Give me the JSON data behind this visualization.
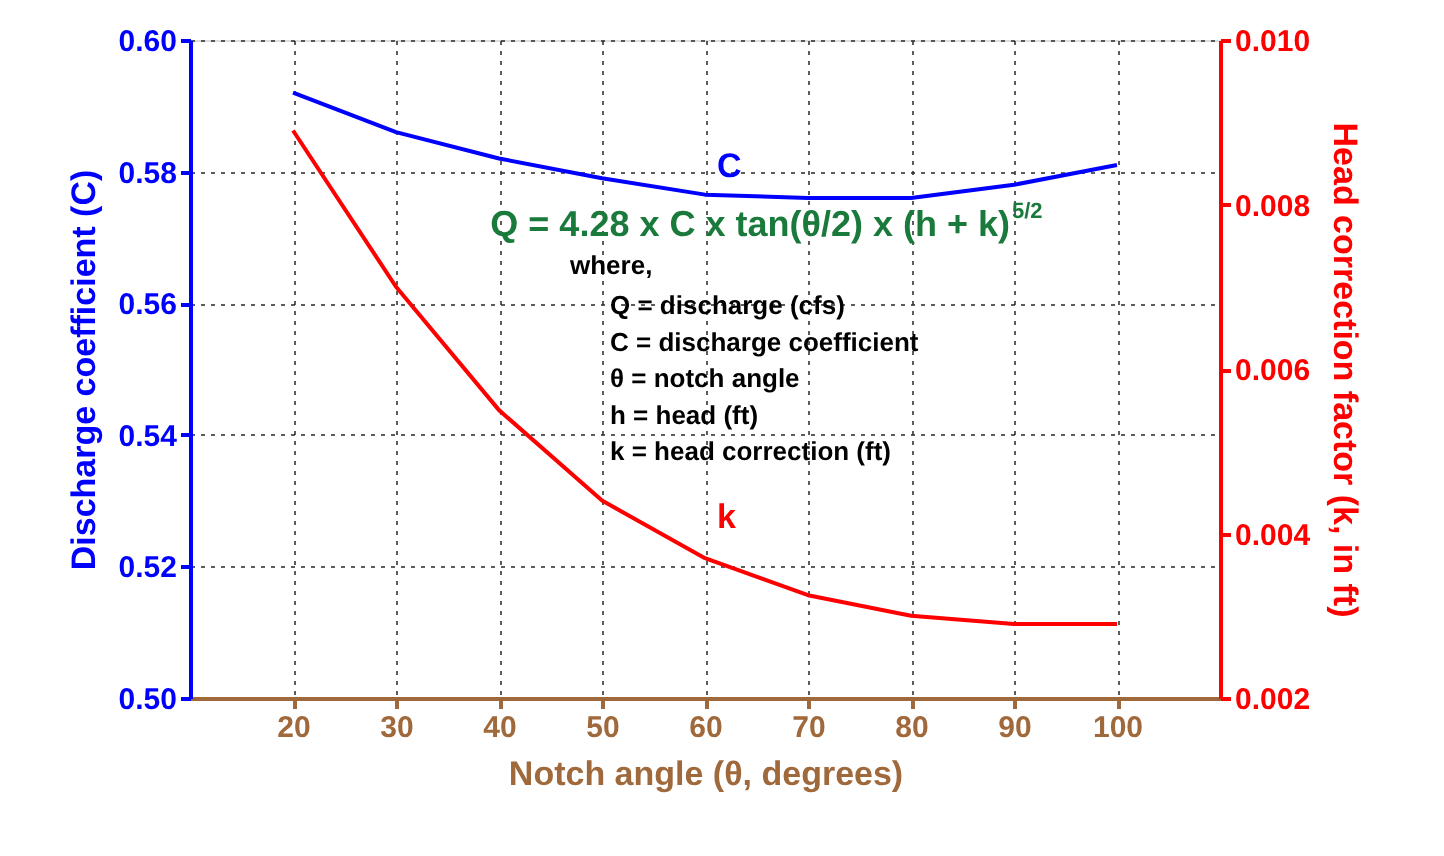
{
  "chart_data": {
    "type": "line",
    "xlabel": "Notch angle (θ, degrees)",
    "ylabel": "Discharge coefficient (C)",
    "y2label": "Head correction factor (k, in ft)",
    "x": [
      20,
      30,
      40,
      50,
      60,
      70,
      80,
      90,
      100
    ],
    "series": [
      {
        "name": "C",
        "color": "#0000ff",
        "values": [
          0.592,
          0.586,
          0.582,
          0.579,
          0.5765,
          0.576,
          0.576,
          0.578,
          0.581
        ]
      },
      {
        "name": "k",
        "color": "#ff0000",
        "axis": "y2",
        "values": [
          0.0089,
          0.007,
          0.0055,
          0.0044,
          0.0037,
          0.00325,
          0.003,
          0.0029,
          0.0029
        ]
      }
    ],
    "xlim": [
      10,
      110
    ],
    "xticks": [
      20,
      30,
      40,
      50,
      60,
      70,
      80,
      90,
      100
    ],
    "ylim": [
      0.5,
      0.6
    ],
    "yticks": [
      {
        "value": 0.5,
        "label": "0.50"
      },
      {
        "value": 0.52,
        "label": "0.52"
      },
      {
        "value": 0.54,
        "label": "0.54"
      },
      {
        "value": 0.56,
        "label": "0.56"
      },
      {
        "value": 0.58,
        "label": "0.58"
      },
      {
        "value": 0.6,
        "label": "0.60"
      }
    ],
    "y2lim": [
      0.002,
      0.01
    ],
    "y2ticks": [
      {
        "value": 0.002,
        "label": "0.002"
      },
      {
        "value": 0.004,
        "label": "0.004"
      },
      {
        "value": 0.006,
        "label": "0.006"
      },
      {
        "value": 0.008,
        "label": "0.008"
      },
      {
        "value": 0.01,
        "label": "0.010"
      }
    ],
    "annotations": [
      "Q = 4.28 x C x tan(θ/2) x (h + k)$^{5/2}$",
      "where,",
      "Q = discharge (cfs)",
      "C = discharge coefficient",
      "θ = notch angle",
      "h = head (ft)",
      "k = head correction (ft)"
    ],
    "grid": true,
    "legend": false,
    "marker": "none",
    "line_style": "solid"
  }
}
